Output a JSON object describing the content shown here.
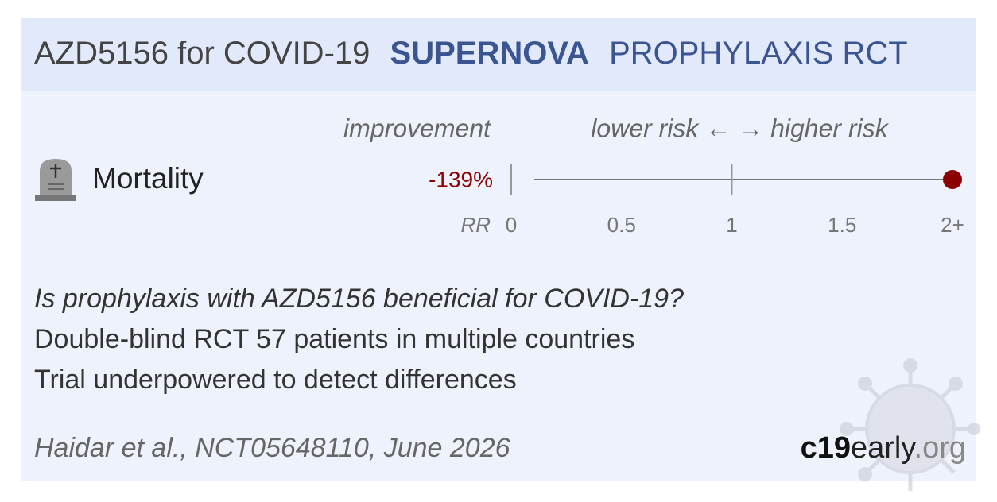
{
  "chart_data": {
    "type": "forest",
    "title": "AZD5156 for COVID-19",
    "trial": "SUPERNOVA",
    "subtitle": "PROPHYLAXIS RCT",
    "left_label": "improvement",
    "right_label": "lower risk ← → higher risk",
    "outcome": "Mortality",
    "effect": -139,
    "value_label": "-139%",
    "color": "#8b0000",
    "axis_label": "RR",
    "xlim": [
      0,
      2
    ],
    "xticks": [
      0,
      0.5,
      1,
      1.5,
      {
        "value": 2,
        "label": "2+"
      }
    ],
    "lines": [
      "Is prophylaxis with AZD5156 beneficial for COVID-19?",
      "Double-blind RCT 57 patients in multiple countries",
      "Trial underpowered to detect differences"
    ],
    "citation": "Haidar et al., NCT05648110, June 2026",
    "brand": [
      "c19",
      "early",
      ".org"
    ]
  }
}
